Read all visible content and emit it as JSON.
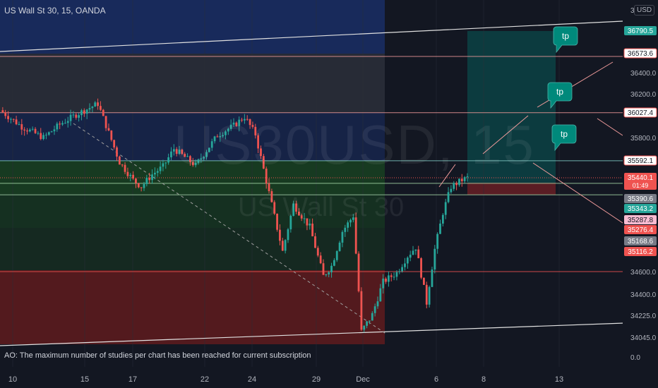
{
  "header": {
    "title": "US Wall St 30, 15, OANDA",
    "currency": "USD",
    "top_tick_fragment": "3"
  },
  "watermark": {
    "symbol": "US30USD",
    "interval": "15",
    "name": "US Wall St 30"
  },
  "ao_message": "AO: The maximum number of studies per chart has been reached for current subscription",
  "ao_zero_label": "0.0",
  "colors": {
    "background": "#131722",
    "up": "#26a69a",
    "down": "#ef5350",
    "zone_blue": "#1e3a8a",
    "zone_green": "#1b5e20",
    "zone_red": "#7f1d1d",
    "badge_teal": "#00897b"
  },
  "chart_data": {
    "type": "candlestick",
    "x_ticks": [
      "10",
      "15",
      "17",
      "22",
      "24",
      "29",
      "Dec",
      "6",
      "8",
      "13"
    ],
    "y_ticks": [
      36400.0,
      36200.0,
      35800.0,
      34600.0,
      34400.0,
      34225.0,
      34045.0
    ],
    "ylim": [
      33950,
      36950
    ],
    "price_key_path": [
      [
        0,
        36050
      ],
      [
        8,
        35900
      ],
      [
        16,
        35800
      ],
      [
        22,
        35920
      ],
      [
        28,
        36010
      ],
      [
        36,
        36110
      ],
      [
        44,
        35580
      ],
      [
        49,
        35420
      ],
      [
        52,
        35360
      ],
      [
        56,
        35470
      ],
      [
        60,
        35540
      ],
      [
        64,
        35700
      ],
      [
        72,
        35550
      ],
      [
        80,
        35820
      ],
      [
        86,
        35910
      ],
      [
        90,
        35990
      ],
      [
        94,
        35830
      ],
      [
        100,
        35200
      ],
      [
        104,
        34780
      ],
      [
        108,
        35200
      ],
      [
        114,
        35000
      ],
      [
        119,
        34560
      ],
      [
        122,
        34650
      ],
      [
        126,
        34960
      ],
      [
        130,
        35100
      ],
      [
        133,
        34090
      ],
      [
        137,
        34230
      ],
      [
        141,
        34510
      ],
      [
        146,
        34590
      ],
      [
        150,
        34740
      ],
      [
        153,
        34820
      ],
      [
        157,
        34330
      ],
      [
        160,
        34800
      ],
      [
        163,
        35130
      ],
      [
        166,
        35360
      ],
      [
        170,
        35420
      ],
      [
        172,
        35440
      ]
    ],
    "price_labels": [
      {
        "value": "36790.5",
        "style": "green-filled"
      },
      {
        "value": "36573.6",
        "style": "outline-red"
      },
      {
        "value": "36027.4",
        "style": "outline-red"
      },
      {
        "value": "35592.1",
        "style": "outline-red"
      },
      {
        "value": "35440.1",
        "style": "red-filled",
        "sub": "01:49"
      },
      {
        "value": "35390.6",
        "style": "gray-filled"
      },
      {
        "value": "35343.2",
        "style": "green-filled"
      },
      {
        "value": "35287.8",
        "style": "pink-filled"
      },
      {
        "value": "35276.4",
        "style": "red-filled"
      },
      {
        "value": "35168.6",
        "style": "gray-filled"
      },
      {
        "value": "35116.2",
        "style": "red-filled"
      }
    ],
    "horizontal_levels": [
      36573.6,
      36027.4,
      35592.1,
      35390.6,
      35287.8,
      34600
    ],
    "annotations": [
      {
        "type": "callout",
        "text": "tp"
      },
      {
        "type": "callout",
        "text": "tp"
      },
      {
        "type": "callout",
        "text": "tp"
      }
    ]
  }
}
